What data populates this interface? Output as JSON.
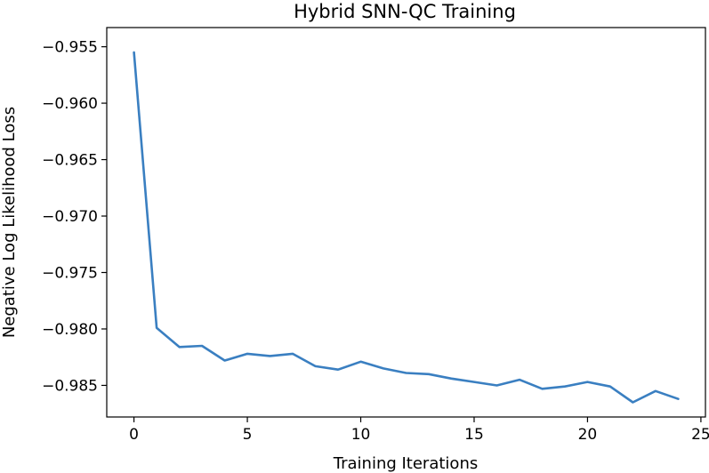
{
  "chart_data": {
    "type": "line",
    "title": "Hybrid SNN-QC Training",
    "xlabel": "Training Iterations",
    "ylabel": "Negative Log Likelihood Loss",
    "xlim": [
      -1.2,
      25.2
    ],
    "ylim": [
      -0.9878,
      -0.9533
    ],
    "xticks": [
      0,
      5,
      10,
      15,
      20,
      25
    ],
    "xtick_labels": [
      "0",
      "5",
      "10",
      "15",
      "20",
      "25"
    ],
    "yticks": [
      -0.955,
      -0.96,
      -0.965,
      -0.97,
      -0.975,
      -0.98,
      -0.985
    ],
    "ytick_labels": [
      "−0.955",
      "−0.960",
      "−0.965",
      "−0.970",
      "−0.975",
      "−0.980",
      "−0.985"
    ],
    "grid": false,
    "series": [
      {
        "color": "#3a7fc1",
        "x": [
          0,
          1,
          2,
          3,
          4,
          5,
          6,
          7,
          8,
          9,
          10,
          11,
          12,
          13,
          14,
          15,
          16,
          17,
          18,
          19,
          20,
          21,
          22,
          23,
          24
        ],
        "y": [
          -0.9555,
          -0.9799,
          -0.9816,
          -0.9815,
          -0.9828,
          -0.9822,
          -0.9824,
          -0.9822,
          -0.9833,
          -0.9836,
          -0.9829,
          -0.9835,
          -0.9839,
          -0.984,
          -0.9844,
          -0.9847,
          -0.985,
          -0.9845,
          -0.9853,
          -0.9851,
          -0.9847,
          -0.9851,
          -0.9865,
          -0.9855,
          -0.9862
        ]
      }
    ]
  }
}
